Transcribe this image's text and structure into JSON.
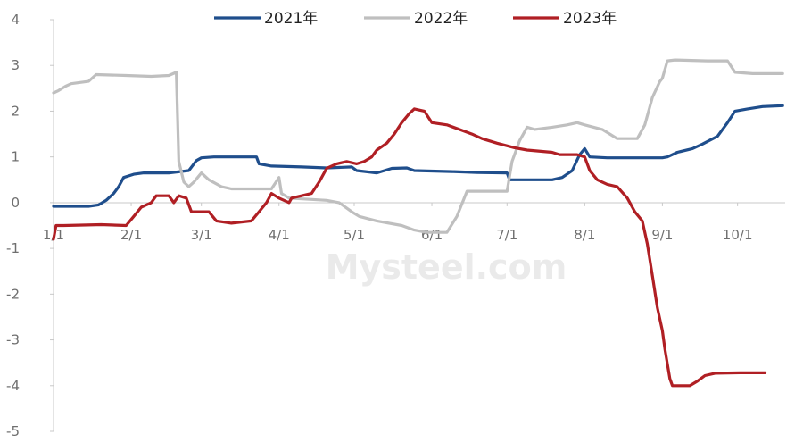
{
  "chart_data": {
    "type": "line",
    "title": "",
    "xlabel": "",
    "ylabel": "",
    "ylim": [
      -5,
      4
    ],
    "yticks": [
      -5,
      -4,
      -3,
      -2,
      -1,
      0,
      1,
      2,
      3,
      4
    ],
    "xlim": [
      1,
      293
    ],
    "xticks": [
      {
        "label": "1/1",
        "day": 1
      },
      {
        "label": "2/1",
        "day": 32
      },
      {
        "label": "3/1",
        "day": 60
      },
      {
        "label": "4/1",
        "day": 91
      },
      {
        "label": "5/1",
        "day": 121
      },
      {
        "label": "6/1",
        "day": 152
      },
      {
        "label": "7/1",
        "day": 182
      },
      {
        "label": "8/1",
        "day": 213
      },
      {
        "label": "9/1",
        "day": 244
      },
      {
        "label": "10/1",
        "day": 274
      }
    ],
    "grid": false,
    "legend": "top-center",
    "watermark": "Mysteel.com",
    "series": [
      {
        "name": "2021年",
        "color": "#1f4e8c",
        "points": [
          [
            1,
            -0.08
          ],
          [
            15,
            -0.08
          ],
          [
            19,
            -0.05
          ],
          [
            22,
            0.05
          ],
          [
            25,
            0.2
          ],
          [
            27,
            0.35
          ],
          [
            29,
            0.55
          ],
          [
            33,
            0.62
          ],
          [
            37,
            0.65
          ],
          [
            47,
            0.65
          ],
          [
            55,
            0.7
          ],
          [
            58,
            0.92
          ],
          [
            60,
            0.98
          ],
          [
            65,
            1.0
          ],
          [
            82,
            1.0
          ],
          [
            83,
            0.85
          ],
          [
            88,
            0.8
          ],
          [
            100,
            0.78
          ],
          [
            110,
            0.76
          ],
          [
            120,
            0.78
          ],
          [
            122,
            0.7
          ],
          [
            130,
            0.65
          ],
          [
            136,
            0.75
          ],
          [
            142,
            0.76
          ],
          [
            145,
            0.7
          ],
          [
            160,
            0.68
          ],
          [
            170,
            0.66
          ],
          [
            182,
            0.65
          ],
          [
            183,
            0.5
          ],
          [
            190,
            0.5
          ],
          [
            200,
            0.5
          ],
          [
            204,
            0.55
          ],
          [
            208,
            0.7
          ],
          [
            211,
            1.05
          ],
          [
            213,
            1.18
          ],
          [
            215,
            1.0
          ],
          [
            222,
            0.98
          ],
          [
            244,
            0.98
          ],
          [
            246,
            1.0
          ],
          [
            250,
            1.1
          ],
          [
            256,
            1.18
          ],
          [
            260,
            1.28
          ],
          [
            266,
            1.45
          ],
          [
            270,
            1.75
          ],
          [
            273,
            2.0
          ],
          [
            278,
            2.05
          ],
          [
            284,
            2.1
          ],
          [
            292,
            2.12
          ]
        ]
      },
      {
        "name": "2022年",
        "color": "#bfbfbf",
        "points": [
          [
            1,
            2.4
          ],
          [
            3,
            2.45
          ],
          [
            6,
            2.55
          ],
          [
            8,
            2.6
          ],
          [
            15,
            2.65
          ],
          [
            18,
            2.8
          ],
          [
            30,
            2.78
          ],
          [
            40,
            2.76
          ],
          [
            47,
            2.78
          ],
          [
            50,
            2.85
          ],
          [
            51,
            0.9
          ],
          [
            53,
            0.45
          ],
          [
            55,
            0.35
          ],
          [
            57,
            0.45
          ],
          [
            60,
            0.65
          ],
          [
            63,
            0.5
          ],
          [
            68,
            0.35
          ],
          [
            72,
            0.3
          ],
          [
            88,
            0.3
          ],
          [
            91,
            0.55
          ],
          [
            92,
            0.2
          ],
          [
            95,
            0.1
          ],
          [
            110,
            0.05
          ],
          [
            115,
            0.0
          ],
          [
            120,
            -0.2
          ],
          [
            123,
            -0.3
          ],
          [
            130,
            -0.4
          ],
          [
            140,
            -0.5
          ],
          [
            145,
            -0.6
          ],
          [
            150,
            -0.65
          ],
          [
            158,
            -0.65
          ],
          [
            162,
            -0.3
          ],
          [
            166,
            0.25
          ],
          [
            182,
            0.25
          ],
          [
            184,
            0.9
          ],
          [
            187,
            1.35
          ],
          [
            190,
            1.65
          ],
          [
            193,
            1.6
          ],
          [
            200,
            1.65
          ],
          [
            206,
            1.7
          ],
          [
            210,
            1.75
          ],
          [
            213,
            1.7
          ],
          [
            220,
            1.6
          ],
          [
            226,
            1.4
          ],
          [
            234,
            1.4
          ],
          [
            237,
            1.7
          ],
          [
            240,
            2.3
          ],
          [
            243,
            2.65
          ],
          [
            244,
            2.72
          ],
          [
            246,
            3.1
          ],
          [
            249,
            3.12
          ],
          [
            262,
            3.1
          ],
          [
            270,
            3.1
          ],
          [
            273,
            2.85
          ],
          [
            280,
            2.82
          ],
          [
            292,
            2.82
          ]
        ]
      },
      {
        "name": "2023年",
        "color": "#b01f24",
        "points": [
          [
            1,
            -0.8
          ],
          [
            2,
            -0.5
          ],
          [
            5,
            -0.5
          ],
          [
            20,
            -0.48
          ],
          [
            30,
            -0.5
          ],
          [
            33,
            -0.3
          ],
          [
            36,
            -0.1
          ],
          [
            40,
            0.0
          ],
          [
            42,
            0.15
          ],
          [
            47,
            0.15
          ],
          [
            49,
            0.0
          ],
          [
            51,
            0.15
          ],
          [
            54,
            0.1
          ],
          [
            56,
            -0.2
          ],
          [
            63,
            -0.2
          ],
          [
            66,
            -0.4
          ],
          [
            72,
            -0.45
          ],
          [
            80,
            -0.4
          ],
          [
            83,
            -0.2
          ],
          [
            86,
            0.0
          ],
          [
            88,
            0.2
          ],
          [
            91,
            0.1
          ],
          [
            95,
            0.0
          ],
          [
            96,
            0.1
          ],
          [
            100,
            0.15
          ],
          [
            104,
            0.2
          ],
          [
            107,
            0.45
          ],
          [
            110,
            0.75
          ],
          [
            114,
            0.85
          ],
          [
            118,
            0.9
          ],
          [
            122,
            0.85
          ],
          [
            125,
            0.9
          ],
          [
            128,
            1.0
          ],
          [
            130,
            1.15
          ],
          [
            134,
            1.3
          ],
          [
            137,
            1.5
          ],
          [
            140,
            1.75
          ],
          [
            143,
            1.95
          ],
          [
            145,
            2.05
          ],
          [
            149,
            2.0
          ],
          [
            152,
            1.75
          ],
          [
            158,
            1.7
          ],
          [
            163,
            1.6
          ],
          [
            168,
            1.5
          ],
          [
            172,
            1.4
          ],
          [
            178,
            1.3
          ],
          [
            185,
            1.2
          ],
          [
            190,
            1.15
          ],
          [
            200,
            1.1
          ],
          [
            203,
            1.05
          ],
          [
            210,
            1.05
          ],
          [
            213,
            1.0
          ],
          [
            215,
            0.7
          ],
          [
            218,
            0.5
          ],
          [
            222,
            0.4
          ],
          [
            226,
            0.35
          ],
          [
            230,
            0.1
          ],
          [
            233,
            -0.2
          ],
          [
            236,
            -0.4
          ],
          [
            238,
            -0.9
          ],
          [
            240,
            -1.6
          ],
          [
            242,
            -2.3
          ],
          [
            244,
            -2.8
          ],
          [
            245,
            -3.2
          ],
          [
            247,
            -3.85
          ],
          [
            248,
            -4.0
          ],
          [
            255,
            -4.0
          ],
          [
            258,
            -3.9
          ],
          [
            261,
            -3.78
          ],
          [
            265,
            -3.73
          ],
          [
            275,
            -3.72
          ],
          [
            285,
            -3.72
          ]
        ]
      }
    ]
  }
}
